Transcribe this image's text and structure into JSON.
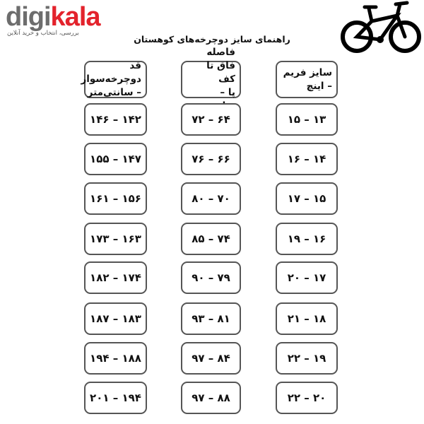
{
  "brand": {
    "logo_part1": "digi",
    "logo_part2": "kala",
    "tagline": "بررسی، انتخاب و خرید آنلاین",
    "accent": "#e3232c"
  },
  "title": "راهنمای سایز دوچرخه‌های کوهستان",
  "illustration": "mountain-bike-icon",
  "headers": [
    {
      "line1": "قد دوچرخه‌سوار",
      "line2": "– سانتی‌متر"
    },
    {
      "line1": "فاصله فاق تا کف",
      "line2": "پا – سانتی‌متر"
    },
    {
      "line1": "سایز فریم",
      "line2": "– اینچ"
    }
  ],
  "rows": [
    [
      "۱۴۶ – ۱۴۲",
      "۷۲ – ۶۴",
      "۱۵ – ۱۳"
    ],
    [
      "۱۵۵ – ۱۴۷",
      "۷۶ – ۶۶",
      "۱۶ – ۱۴"
    ],
    [
      "۱۶۱ – ۱۵۶",
      "۸۰ – ۷۰",
      "۱۷ – ۱۵"
    ],
    [
      "۱۷۳ – ۱۶۳",
      "۸۵ – ۷۴",
      "۱۹ – ۱۶"
    ],
    [
      "۱۸۲ – ۱۷۴",
      "۹۰ – ۷۹",
      "۲۰ – ۱۷"
    ],
    [
      "۱۸۷ – ۱۸۳",
      "۹۳ – ۸۱",
      "۲۱ – ۱۸"
    ],
    [
      "۱۹۴ – ۱۸۸",
      "۹۷ – ۸۴",
      "۲۲ – ۱۹"
    ],
    [
      "۲۰۱ – ۱۹۴",
      "۹۷ – ۸۸",
      "۲۲ – ۲۰"
    ]
  ]
}
